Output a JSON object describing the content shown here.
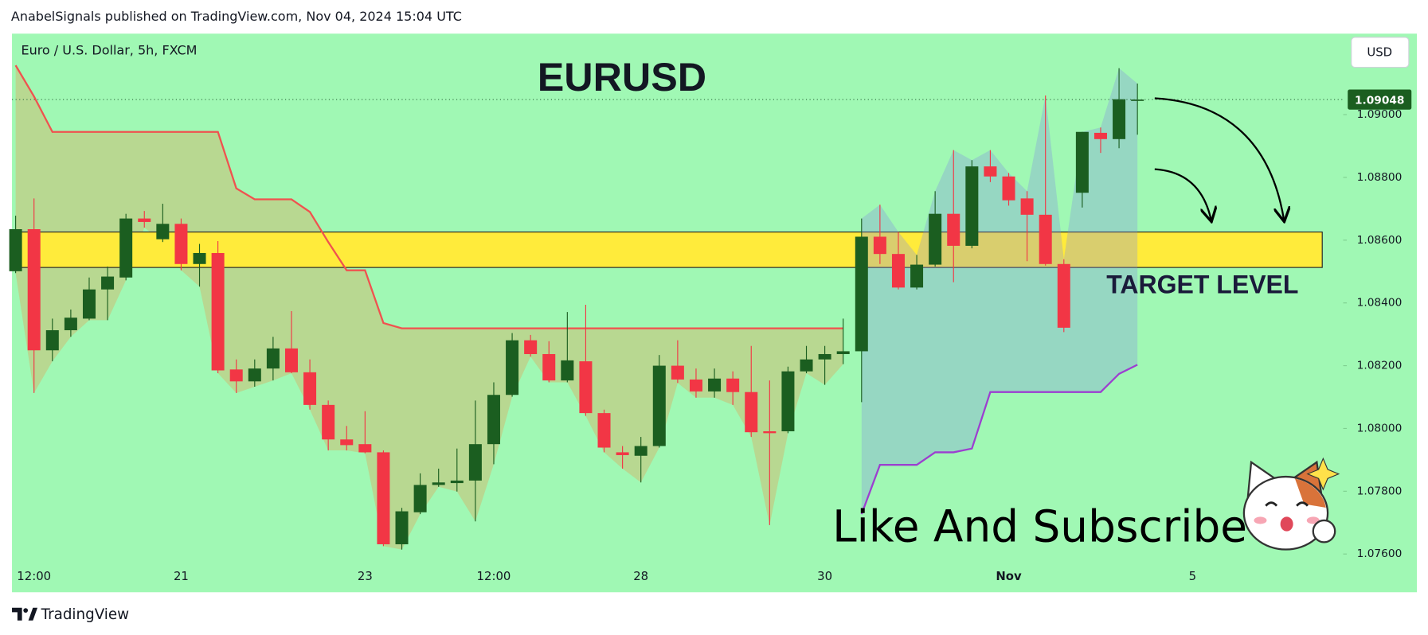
{
  "header": "AnabelSignals published on TradingView.com, Nov 04, 2024 15:04 UTC",
  "footer": "TradingView",
  "chart_data": {
    "type": "candlestick",
    "title": "EURUSD",
    "symbol": "Euro / U.S. Dollar, 5h, FXCM",
    "currency": "USD",
    "annotations": [
      "TARGET LEVEL",
      "Like And Subscribe"
    ],
    "background": "#a0f8b4",
    "up_color": "#1b5e20",
    "down_color": "#f23645",
    "categories": [
      null,
      "12:00",
      null,
      null,
      null,
      null,
      null,
      null,
      null,
      "21",
      null,
      null,
      null,
      null,
      null,
      null,
      null,
      null,
      null,
      "23",
      null,
      null,
      null,
      null,
      null,
      null,
      "12:00",
      null,
      null,
      null,
      null,
      null,
      null,
      null,
      "28",
      null,
      null,
      null,
      null,
      null,
      null,
      null,
      null,
      null,
      "30",
      null,
      null,
      null,
      null,
      null,
      null,
      null,
      null,
      null,
      "Nov",
      null,
      null,
      null,
      null,
      null,
      null,
      null,
      null,
      null,
      "5",
      null,
      null,
      null,
      null,
      null,
      null,
      null
    ],
    "open": [
      1.08501,
      1.08635,
      1.08249,
      1.08313,
      1.0835,
      1.08443,
      1.08481,
      1.08669,
      1.08603,
      1.08652,
      1.08524,
      1.08559,
      1.08188,
      1.0815,
      1.08191,
      1.08255,
      1.08179,
      1.08075,
      1.07965,
      1.0795,
      1.07924,
      1.07631,
      1.07733,
      1.0782,
      1.07826,
      1.07834,
      1.0795,
      1.08107,
      1.08281,
      1.08237,
      1.08153,
      1.08214,
      1.08049,
      1.07924,
      1.07913,
      1.07944,
      1.082,
      1.08156,
      1.08118,
      1.08159,
      1.08116,
      1.07991,
      1.07991,
      1.08182,
      1.0822,
      1.08237,
      1.08246,
      1.08611,
      1.08556,
      1.08449,
      1.08522,
      1.08684,
      1.08582,
      1.08835,
      1.08803,
      1.08733,
      1.08681,
      1.08524,
      1.08751,
      1.08942,
      1.08922,
      1.09045,
      null,
      null,
      null,
      null,
      null,
      null,
      null,
      null,
      null,
      null
    ],
    "high": [
      1.08678,
      1.08733,
      1.0835,
      1.08379,
      1.08481,
      1.08516,
      1.08684,
      1.08693,
      1.08716,
      1.08669,
      1.08588,
      1.08597,
      1.0822,
      1.0822,
      1.08292,
      1.08374,
      1.0822,
      1.08089,
      1.08008,
      1.08055,
      1.0793,
      1.07747,
      1.07857,
      1.07872,
      1.07936,
      1.08089,
      1.08147,
      1.08304,
      1.08298,
      1.08278,
      1.08371,
      1.08394,
      1.0806,
      1.07944,
      1.07973,
      1.08234,
      1.08281,
      1.08191,
      1.08191,
      1.08182,
      1.08263,
      1.08153,
      1.08197,
      1.08263,
      1.08263,
      1.0835,
      1.08669,
      1.08713,
      1.08626,
      1.08553,
      1.08756,
      1.08887,
      1.08855,
      1.08887,
      1.08814,
      1.08756,
      1.09061,
      1.08539,
      1.08945,
      1.08959,
      1.09148,
      1.09099,
      null,
      null,
      null,
      null,
      null,
      null,
      null,
      null,
      null,
      null
    ],
    "low": [
      1.08495,
      1.08113,
      1.08214,
      1.08292,
      1.08345,
      1.08345,
      1.08472,
      1.0864,
      1.08594,
      1.08504,
      1.08452,
      1.08176,
      1.08113,
      1.08133,
      1.08153,
      1.08176,
      1.0806,
      1.0793,
      1.0793,
      1.07921,
      1.07625,
      1.07614,
      1.07727,
      1.07814,
      1.07799,
      1.07704,
      1.07886,
      1.08101,
      1.08229,
      1.08147,
      1.08147,
      1.0804,
      1.07924,
      1.07872,
      1.07828,
      1.07939,
      1.08145,
      1.08098,
      1.08098,
      1.08075,
      1.07973,
      1.07692,
      1.07985,
      1.08176,
      1.08139,
      1.08205,
      1.08084,
      1.08524,
      1.08443,
      1.08443,
      1.08516,
      1.08466,
      1.08574,
      1.08785,
      1.0871,
      1.08533,
      1.08519,
      1.08307,
      1.08704,
      1.08878,
      1.08893,
      1.08936,
      null,
      null,
      null,
      null,
      null,
      null,
      null,
      null,
      null,
      null
    ],
    "close": [
      1.08635,
      1.08249,
      1.08313,
      1.08353,
      1.08443,
      1.08484,
      1.08669,
      1.08658,
      1.08652,
      1.08524,
      1.08559,
      1.08185,
      1.0815,
      1.08191,
      1.08255,
      1.08179,
      1.08075,
      1.07965,
      1.07947,
      1.07924,
      1.07631,
      1.07736,
      1.0782,
      1.07828,
      1.07834,
      1.0795,
      1.08107,
      1.08281,
      1.08237,
      1.08153,
      1.08217,
      1.08049,
      1.07939,
      1.07915,
      1.07944,
      1.082,
      1.08156,
      1.08118,
      1.08159,
      1.08116,
      1.07988,
      1.07985,
      1.08182,
      1.0822,
      1.08237,
      1.08246,
      1.08611,
      1.08556,
      1.08449,
      1.08522,
      1.08684,
      1.08582,
      1.08835,
      1.08803,
      1.08727,
      1.08681,
      1.08524,
      1.08321,
      1.08945,
      1.08922,
      1.09049,
      1.09048,
      null,
      null,
      null,
      null,
      null,
      null,
      null,
      null,
      null,
      null
    ],
    "overlays": [
      {
        "color": "#f0524f",
        "fill": "rgba(255,120,40,0.25)",
        "values": [
          1.09157,
          1.09058,
          1.08945,
          1.08945,
          1.08945,
          1.08945,
          1.08945,
          1.08945,
          1.08945,
          1.08945,
          1.08945,
          1.08945,
          1.08765,
          1.0873,
          1.0873,
          1.0873,
          1.0869,
          1.08594,
          1.08504,
          1.08504,
          1.08336,
          1.08319,
          1.08319,
          1.08319,
          1.08319,
          1.08319,
          1.08319,
          1.08319,
          1.08319,
          1.08319,
          1.08319,
          1.08319,
          1.08319,
          1.08319,
          1.08319,
          1.08319,
          1.08319,
          1.08319,
          1.08319,
          1.08319,
          1.08319,
          1.08319,
          1.08319,
          1.08319,
          1.08319,
          1.08319,
          null,
          null,
          null,
          null,
          null,
          null,
          null,
          null,
          null,
          null,
          null,
          null,
          null,
          null,
          null,
          null,
          null,
          null,
          null,
          null,
          null,
          null,
          null,
          null,
          null,
          null
        ]
      },
      {
        "color": "#9c3fd0",
        "fill": "rgba(130,140,230,0.3)",
        "values": [
          null,
          null,
          null,
          null,
          null,
          null,
          null,
          null,
          null,
          null,
          null,
          null,
          null,
          null,
          null,
          null,
          null,
          null,
          null,
          null,
          null,
          null,
          null,
          null,
          null,
          null,
          null,
          null,
          null,
          null,
          null,
          null,
          null,
          null,
          null,
          null,
          null,
          null,
          null,
          null,
          null,
          null,
          null,
          null,
          null,
          null,
          1.07727,
          1.07884,
          1.07884,
          1.07884,
          1.07924,
          1.07924,
          1.07936,
          1.08116,
          1.08116,
          1.08116,
          1.08116,
          1.08116,
          1.08116,
          1.08116,
          1.08174,
          1.08203,
          null,
          null,
          null,
          null,
          null,
          null,
          null,
          null,
          null,
          null
        ]
      }
    ],
    "zone": [
      1.08513,
      1.08626
    ],
    "zone_color": "#ffeb3b",
    "last_price": 1.09048,
    "ylim": [
      1.07568,
      1.09258
    ],
    "yticks": [
      {
        "value": 1.076,
        "label": "1.07600"
      },
      {
        "value": 1.078,
        "label": "1.07800"
      },
      {
        "value": 1.08,
        "label": "1.08000"
      },
      {
        "value": 1.082,
        "label": "1.08200"
      },
      {
        "value": 1.084,
        "label": "1.08400"
      },
      {
        "value": 1.086,
        "label": "1.08600"
      },
      {
        "value": 1.088,
        "label": "1.08800"
      },
      {
        "value": 1.09,
        "label": "1.09000"
      }
    ]
  }
}
